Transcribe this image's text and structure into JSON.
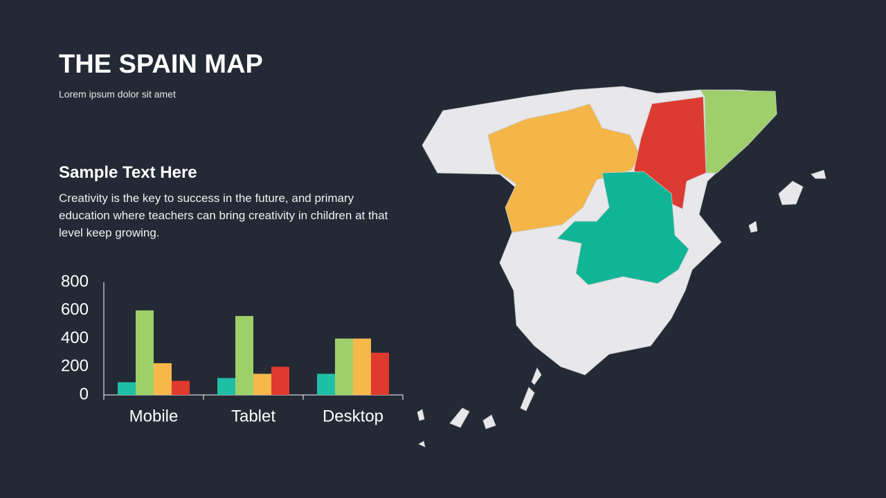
{
  "header": {
    "title": "THE SPAIN MAP",
    "subtitle": "Lorem ipsum dolor sit amet"
  },
  "text": {
    "heading": "Sample Text Here",
    "body": "Creativity is the key to success in the future, and primary education where teachers can bring creativity in children at that level keep growing."
  },
  "chart_data": {
    "type": "bar",
    "categories": [
      "Mobile",
      "Tablet",
      "Desktop"
    ],
    "series": [
      {
        "color": "#1fbfa6",
        "values": [
          90,
          120,
          150
        ]
      },
      {
        "color": "#9ed06a",
        "values": [
          600,
          560,
          400
        ]
      },
      {
        "color": "#f7b84a",
        "values": [
          225,
          150,
          400
        ]
      },
      {
        "color": "#e0392e",
        "values": [
          100,
          200,
          300
        ]
      }
    ],
    "ylim": [
      0,
      800
    ],
    "yticks": [
      0,
      200,
      400,
      600,
      800
    ],
    "grid": false
  }
}
